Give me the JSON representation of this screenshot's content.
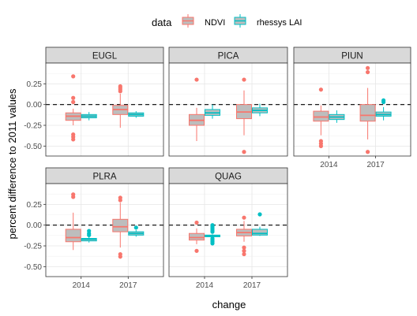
{
  "chart_data": {
    "type": "box",
    "xlabel": "change",
    "ylabel": "percent difference to 2011 values",
    "ylim": [
      -0.62,
      0.5
    ],
    "yticks": [
      -0.5,
      -0.25,
      0.0,
      0.25
    ],
    "ytick_labels": [
      "-0.50",
      "-0.25",
      "0.00",
      "0.25"
    ],
    "categories": [
      "2014",
      "2017"
    ],
    "reference_line": {
      "y": 0,
      "style": "dashed"
    },
    "grid": true,
    "legend": {
      "title": "data",
      "position": "top",
      "entries": [
        {
          "name": "NDVI",
          "color": "#F8766D"
        },
        {
          "name": "rhessys LAI",
          "color": "#00BFC4"
        }
      ]
    },
    "facets": [
      {
        "name": "EUGL",
        "boxes": [
          {
            "category": "2014",
            "series": "NDVI",
            "q1": -0.19,
            "median": -0.14,
            "q3": -0.1,
            "whisker_low": -0.25,
            "whisker_high": -0.05,
            "outliers": [
              0.34,
              0.08,
              0.03,
              -0.36,
              -0.39,
              -0.42
            ]
          },
          {
            "category": "2014",
            "series": "rhessys LAI",
            "q1": -0.16,
            "median": -0.14,
            "q3": -0.12,
            "whisker_low": -0.19,
            "whisker_high": -0.09,
            "outliers": []
          },
          {
            "category": "2017",
            "series": "NDVI",
            "q1": -0.12,
            "median": -0.06,
            "q3": -0.01,
            "whisker_low": -0.28,
            "whisker_high": 0.13,
            "outliers": [
              0.22,
              0.2,
              0.18,
              0.16
            ]
          },
          {
            "category": "2017",
            "series": "rhessys LAI",
            "q1": -0.14,
            "median": -0.12,
            "q3": -0.1,
            "whisker_low": -0.16,
            "whisker_high": -0.08,
            "outliers": []
          }
        ]
      },
      {
        "name": "PICA",
        "boxes": [
          {
            "category": "2014",
            "series": "NDVI",
            "q1": -0.25,
            "median": -0.19,
            "q3": -0.12,
            "whisker_low": -0.44,
            "whisker_high": -0.04,
            "outliers": [
              0.3
            ]
          },
          {
            "category": "2014",
            "series": "rhessys LAI",
            "q1": -0.13,
            "median": -0.1,
            "q3": -0.06,
            "whisker_low": -0.17,
            "whisker_high": 0.0,
            "outliers": []
          },
          {
            "category": "2017",
            "series": "NDVI",
            "q1": -0.17,
            "median": -0.09,
            "q3": 0.0,
            "whisker_low": -0.37,
            "whisker_high": 0.17,
            "outliers": [
              0.3,
              -0.57
            ]
          },
          {
            "category": "2017",
            "series": "rhessys LAI",
            "q1": -0.1,
            "median": -0.07,
            "q3": -0.04,
            "whisker_low": -0.14,
            "whisker_high": 0.01,
            "outliers": []
          }
        ]
      },
      {
        "name": "PIUN",
        "boxes": [
          {
            "category": "2014",
            "series": "NDVI",
            "q1": -0.2,
            "median": -0.15,
            "q3": -0.08,
            "whisker_low": -0.37,
            "whisker_high": -0.01,
            "outliers": [
              0.18,
              -0.44,
              -0.47,
              -0.5
            ]
          },
          {
            "category": "2014",
            "series": "rhessys LAI",
            "q1": -0.18,
            "median": -0.15,
            "q3": -0.12,
            "whisker_low": -0.22,
            "whisker_high": -0.07,
            "outliers": []
          },
          {
            "category": "2017",
            "series": "NDVI",
            "q1": -0.2,
            "median": -0.13,
            "q3": 0.0,
            "whisker_low": -0.42,
            "whisker_high": 0.2,
            "outliers": [
              0.44,
              0.39,
              -0.57
            ]
          },
          {
            "category": "2017",
            "series": "rhessys LAI",
            "q1": -0.14,
            "median": -0.12,
            "q3": -0.09,
            "whisker_low": -0.19,
            "whisker_high": -0.03,
            "outliers": [
              0.05,
              0.03
            ]
          }
        ]
      },
      {
        "name": "PLRA",
        "boxes": [
          {
            "category": "2014",
            "series": "NDVI",
            "q1": -0.2,
            "median": -0.15,
            "q3": -0.05,
            "whisker_low": -0.3,
            "whisker_high": 0.15,
            "outliers": [
              0.37,
              0.34
            ]
          },
          {
            "category": "2014",
            "series": "rhessys LAI",
            "q1": -0.19,
            "median": -0.17,
            "q3": -0.16,
            "whisker_low": -0.21,
            "whisker_high": -0.14,
            "outliers": [
              -0.07,
              -0.1,
              -0.12
            ]
          },
          {
            "category": "2017",
            "series": "NDVI",
            "q1": -0.08,
            "median": -0.02,
            "q3": 0.07,
            "whisker_low": -0.27,
            "whisker_high": 0.27,
            "outliers": [
              0.33,
              0.3,
              -0.35,
              -0.38
            ]
          },
          {
            "category": "2017",
            "series": "rhessys LAI",
            "q1": -0.12,
            "median": -0.1,
            "q3": -0.08,
            "whisker_low": -0.14,
            "whisker_high": -0.06,
            "outliers": [
              -0.03
            ]
          }
        ]
      },
      {
        "name": "QUAG",
        "boxes": [
          {
            "category": "2014",
            "series": "NDVI",
            "q1": -0.18,
            "median": -0.15,
            "q3": -0.1,
            "whisker_low": -0.23,
            "whisker_high": -0.04,
            "outliers": [
              0.03,
              -0.31
            ]
          },
          {
            "category": "2014",
            "series": "rhessys LAI",
            "q1": -0.14,
            "median": -0.13,
            "q3": -0.12,
            "whisker_low": -0.15,
            "whisker_high": -0.11,
            "outliers": [
              0.0,
              -0.02,
              -0.04,
              -0.06,
              -0.08,
              -0.16,
              -0.18,
              -0.2,
              -0.22
            ]
          },
          {
            "category": "2017",
            "series": "NDVI",
            "q1": -0.13,
            "median": -0.09,
            "q3": -0.05,
            "whisker_low": -0.2,
            "whisker_high": 0.05,
            "outliers": [
              0.09,
              -0.27,
              -0.31,
              -0.35
            ]
          },
          {
            "category": "2017",
            "series": "rhessys LAI",
            "q1": -0.12,
            "median": -0.1,
            "q3": -0.05,
            "whisker_low": -0.13,
            "whisker_high": -0.02,
            "outliers": [
              0.13
            ]
          }
        ]
      }
    ]
  }
}
